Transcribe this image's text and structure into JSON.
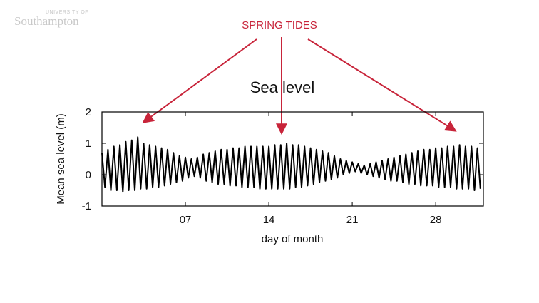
{
  "logo": {
    "line1": "UNIVERSITY OF",
    "line2": "Southampton"
  },
  "annotation": {
    "text": "SPRING TIDES",
    "color": "#c8243a"
  },
  "chart_data": {
    "type": "line",
    "title": "Sea level",
    "xlabel": "day of month",
    "ylabel": "Mean sea level (m)",
    "xlim": [
      0,
      32
    ],
    "ylim": [
      -1,
      2
    ],
    "xticks": [
      {
        "value": 7,
        "label": "07"
      },
      {
        "value": 14,
        "label": "14"
      },
      {
        "value": 21,
        "label": "21"
      },
      {
        "value": 28,
        "label": "28"
      }
    ],
    "yticks": [
      {
        "value": 2,
        "label": "2"
      },
      {
        "value": 1,
        "label": "1"
      },
      {
        "value": 0,
        "label": "0"
      },
      {
        "value": -1,
        "label": "-1"
      }
    ],
    "line_color": "#000000",
    "grid": false,
    "series": [
      {
        "name": "",
        "x": [
          0,
          0.25,
          0.5,
          0.75,
          1,
          1.25,
          1.5,
          1.75,
          2,
          2.25,
          2.5,
          2.75,
          3,
          3.25,
          3.5,
          3.75,
          4,
          4.25,
          4.5,
          4.75,
          5,
          5.25,
          5.5,
          5.75,
          6,
          6.25,
          6.5,
          6.75,
          7,
          7.25,
          7.5,
          7.75,
          8,
          8.25,
          8.5,
          8.75,
          9,
          9.25,
          9.5,
          9.75,
          10,
          10.25,
          10.5,
          10.75,
          11,
          11.25,
          11.5,
          11.75,
          12,
          12.25,
          12.5,
          12.75,
          13,
          13.25,
          13.5,
          13.75,
          14,
          14.25,
          14.5,
          14.75,
          15,
          15.25,
          15.5,
          15.75,
          16,
          16.25,
          16.5,
          16.75,
          17,
          17.25,
          17.5,
          17.75,
          18,
          18.25,
          18.5,
          18.75,
          19,
          19.25,
          19.5,
          19.75,
          20,
          20.25,
          20.5,
          20.75,
          21,
          21.25,
          21.5,
          21.75,
          22,
          22.25,
          22.5,
          22.75,
          23,
          23.25,
          23.5,
          23.75,
          24,
          24.25,
          24.5,
          24.75,
          25,
          25.25,
          25.5,
          25.75,
          26,
          26.25,
          26.5,
          26.75,
          27,
          27.25,
          27.5,
          27.75,
          28,
          28.25,
          28.5,
          28.75,
          29,
          29.25,
          29.5,
          29.75,
          30,
          30.25,
          30.5,
          30.75,
          31,
          31.25,
          31.5,
          31.75
        ],
        "y": [
          0.7,
          -0.4,
          0.8,
          -0.5,
          0.9,
          -0.5,
          0.95,
          -0.55,
          1.05,
          -0.5,
          1.1,
          -0.5,
          1.2,
          -0.45,
          1.0,
          -0.45,
          0.95,
          -0.4,
          0.9,
          -0.4,
          0.85,
          -0.35,
          0.8,
          -0.3,
          0.7,
          -0.25,
          0.6,
          -0.2,
          0.55,
          -0.1,
          0.5,
          -0.05,
          0.55,
          -0.1,
          0.65,
          -0.2,
          0.7,
          -0.25,
          0.75,
          -0.3,
          0.8,
          -0.3,
          0.8,
          -0.35,
          0.85,
          -0.35,
          0.85,
          -0.4,
          0.9,
          -0.4,
          0.9,
          -0.4,
          0.9,
          -0.45,
          0.9,
          -0.45,
          0.9,
          -0.45,
          0.95,
          -0.45,
          0.95,
          -0.45,
          1.0,
          -0.45,
          0.95,
          -0.4,
          0.95,
          -0.4,
          0.9,
          -0.35,
          0.85,
          -0.3,
          0.8,
          -0.25,
          0.75,
          -0.2,
          0.7,
          -0.15,
          0.6,
          -0.1,
          0.5,
          0.0,
          0.45,
          0.05,
          0.4,
          0.1,
          0.35,
          0.05,
          0.3,
          0.0,
          0.35,
          -0.05,
          0.4,
          -0.1,
          0.45,
          -0.15,
          0.5,
          -0.2,
          0.55,
          -0.2,
          0.6,
          -0.25,
          0.65,
          -0.3,
          0.7,
          -0.3,
          0.75,
          -0.35,
          0.8,
          -0.35,
          0.8,
          -0.35,
          0.85,
          -0.4,
          0.85,
          -0.4,
          0.9,
          -0.4,
          0.9,
          -0.45,
          0.95,
          -0.45,
          0.9,
          -0.45,
          0.9,
          -0.5,
          0.85,
          -0.45
        ]
      }
    ]
  }
}
